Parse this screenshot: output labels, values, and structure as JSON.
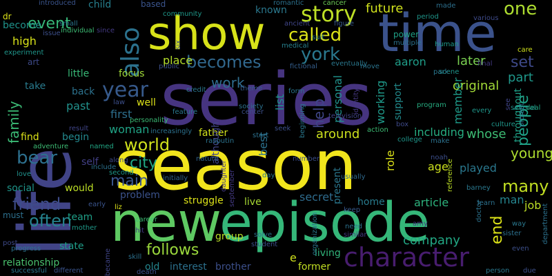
{
  "words": [
    {
      "text": "series",
      "color": "#463480"
    },
    {
      "text": "season",
      "color": "#f1e51d"
    },
    {
      "text": "life",
      "color": "#414487"
    },
    {
      "text": "new",
      "color": "#5ec962"
    },
    {
      "text": "episode",
      "color": "#35b779"
    },
    {
      "text": "show",
      "color": "#d8e219"
    },
    {
      "text": "time",
      "color": "#3b528b"
    },
    {
      "text": "character",
      "color": "#481d6f"
    },
    {
      "text": "also",
      "color": "#2c728e"
    },
    {
      "text": "story",
      "color": "#bddf26"
    },
    {
      "text": "called",
      "color": "#dde318"
    },
    {
      "text": "york",
      "color": "#2a788e"
    },
    {
      "text": "becomes",
      "color": "#31688e"
    },
    {
      "text": "year",
      "color": "#375a8c"
    },
    {
      "text": "one",
      "color": "#addc30"
    },
    {
      "text": "world",
      "color": "#d0e11c"
    },
    {
      "text": "bear",
      "color": "#2d708e"
    },
    {
      "text": "friend",
      "color": "#3e4c8a"
    },
    {
      "text": "city",
      "color": "#22a884"
    },
    {
      "text": "main",
      "color": "#39568c"
    },
    {
      "text": "follows",
      "color": "#9bd93c"
    },
    {
      "text": "many",
      "color": "#c2df23"
    },
    {
      "text": "often",
      "color": "#25838e"
    },
    {
      "text": "people",
      "color": "#1fa187"
    },
    {
      "text": "young",
      "color": "#addc30"
    },
    {
      "text": "end",
      "color": "#dde318"
    },
    {
      "text": "family",
      "color": "#3bbb75"
    },
    {
      "text": "event",
      "color": "#37b878"
    },
    {
      "text": "work",
      "color": "#2f6c8e"
    },
    {
      "text": "future",
      "color": "#d0e11c"
    },
    {
      "text": "original",
      "color": "#a2da37"
    },
    {
      "text": "set",
      "color": "#3e4989"
    },
    {
      "text": "part",
      "color": "#1f988b"
    },
    {
      "text": "later",
      "color": "#7ad151"
    },
    {
      "text": "aaron",
      "color": "#1f9e89"
    },
    {
      "text": "help",
      "color": "#404688"
    },
    {
      "text": "personal",
      "color": "#20928c"
    },
    {
      "text": "working",
      "color": "#1f9a8a"
    },
    {
      "text": "support",
      "color": "#228b8d"
    },
    {
      "text": "member",
      "color": "#1e9b8a"
    },
    {
      "text": "including",
      "color": "#26ad81"
    },
    {
      "text": "whose",
      "color": "#3dbc74"
    },
    {
      "text": "throughout",
      "color": "#1fa187"
    },
    {
      "text": "around",
      "color": "#ccE11d"
    },
    {
      "text": "list",
      "color": "#20928c"
    },
    {
      "text": "best",
      "color": "#2c728e"
    },
    {
      "text": "role",
      "color": "#dde318"
    },
    {
      "text": "age",
      "color": "#cde11d"
    },
    {
      "text": "played",
      "color": "#2a788e"
    },
    {
      "text": "job",
      "color": "#bddf26"
    },
    {
      "text": "man",
      "color": "#25848e"
    },
    {
      "text": "company",
      "color": "#22a884"
    },
    {
      "text": "article",
      "color": "#2db27d"
    },
    {
      "text": "home",
      "color": "#287c8e"
    },
    {
      "text": "secret",
      "color": "#2f6c8e"
    },
    {
      "text": "live",
      "color": "#a8db34"
    },
    {
      "text": "group",
      "color": "#bade28"
    },
    {
      "text": "brother",
      "color": "#3c4f8a"
    },
    {
      "text": "living",
      "color": "#31b57b"
    },
    {
      "text": "former",
      "color": "#c2df23"
    },
    {
      "text": "present",
      "color": "#2a778e"
    },
    {
      "text": "struggle",
      "color": "#dde318"
    },
    {
      "text": "problem",
      "color": "#3b528b"
    },
    {
      "text": "woman",
      "color": "#20a486"
    },
    {
      "text": "first",
      "color": "#2e6f8e"
    },
    {
      "text": "focus",
      "color": "#a0da39"
    },
    {
      "text": "well",
      "color": "#dde318"
    },
    {
      "text": "place",
      "color": "#b5de2b"
    },
    {
      "text": "back",
      "color": "#2c728e"
    },
    {
      "text": "past",
      "color": "#21918c"
    },
    {
      "text": "little",
      "color": "#38b977"
    },
    {
      "text": "take",
      "color": "#297b8e"
    },
    {
      "text": "art",
      "color": "#3e4a89"
    },
    {
      "text": "high",
      "color": "#d8e219"
    },
    {
      "text": "become",
      "color": "#1f948c"
    },
    {
      "text": "find",
      "color": "#dde318"
    },
    {
      "text": "begin",
      "color": "#23898e"
    },
    {
      "text": "self",
      "color": "#424086"
    },
    {
      "text": "team",
      "color": "#1fa088"
    },
    {
      "text": "would",
      "color": "#bddf26"
    },
    {
      "text": "social",
      "color": "#1f968b"
    },
    {
      "text": "must",
      "color": "#2d708e"
    },
    {
      "text": "relationship",
      "color": "#4ac16d"
    },
    {
      "text": "state",
      "color": "#1f9e89"
    },
    {
      "text": "father",
      "color": "#d2e21b"
    },
    {
      "text": "although",
      "color": "#414487"
    },
    {
      "text": "interest",
      "color": "#2c718e"
    },
    {
      "text": "old",
      "color": "#24868e"
    },
    {
      "text": "child",
      "color": "#277f8e"
    },
    {
      "text": "based",
      "color": "#3a548c"
    },
    {
      "text": "known",
      "color": "#2a788e"
    },
    {
      "text": "dr",
      "color": "#dde318"
    },
    {
      "text": "adventure",
      "color": "#3dbc74"
    },
    {
      "text": "named",
      "color": "#22a785"
    },
    {
      "text": "feature",
      "color": "#2a788e"
    },
    {
      "text": "nature",
      "color": "#32648e"
    },
    {
      "text": "day",
      "color": "#2a768e"
    },
    {
      "text": "usually",
      "color": "#306a8e"
    },
    {
      "text": "keep",
      "color": "#375b8d"
    },
    {
      "text": "similar",
      "color": "#453882"
    },
    {
      "text": "solve",
      "color": "#2c718e"
    },
    {
      "text": "career",
      "color": "#3dbc74"
    },
    {
      "text": "mother",
      "color": "#1f9a8a"
    },
    {
      "text": "doctor",
      "color": "#2c728e"
    },
    {
      "text": "program",
      "color": "#27ad81"
    },
    {
      "text": "several",
      "color": "#21918c"
    },
    {
      "text": "scene",
      "color": "#1f968b"
    },
    {
      "text": "fictional",
      "color": "#355f8d"
    },
    {
      "text": "form",
      "color": "#2b758e"
    },
    {
      "text": "eventually",
      "color": "#2a788e"
    },
    {
      "text": "society",
      "color": "#2c718e"
    },
    {
      "text": "move",
      "color": "#2b748e"
    },
    {
      "text": "rasputin",
      "color": "#2c738e"
    },
    {
      "text": "reference",
      "color": "#bddf26"
    },
    {
      "text": "culture",
      "color": "#1f978b"
    },
    {
      "text": "college",
      "color": "#1f968b"
    },
    {
      "text": "noah",
      "color": "#3c4f8a"
    },
    {
      "text": "cancer",
      "color": "#6ece58"
    },
    {
      "text": "power",
      "color": "#1fa187"
    },
    {
      "text": "multiple",
      "color": "#2c728e"
    },
    {
      "text": "introduced",
      "color": "#3a548c"
    },
    {
      "text": "community",
      "color": "#1f998a"
    },
    {
      "text": "romantic",
      "color": "#2c718e"
    },
    {
      "text": "figure",
      "color": "#38598c"
    },
    {
      "text": "ancient",
      "color": "#404588"
    },
    {
      "text": "medical",
      "color": "#27808e"
    },
    {
      "text": "period",
      "color": "#1f968b"
    },
    {
      "text": "made",
      "color": "#2d708e"
    },
    {
      "text": "various",
      "color": "#3e4a89"
    },
    {
      "text": "human",
      "color": "#1f9a8a"
    },
    {
      "text": "care",
      "color": "#d0e11c"
    },
    {
      "text": "deal",
      "color": "#22a785"
    },
    {
      "text": "park",
      "color": "#2a768e"
    },
    {
      "text": "box",
      "color": "#3e4a89"
    },
    {
      "text": "action",
      "color": "#3dbc74"
    },
    {
      "text": "make",
      "color": "#2c728e"
    },
    {
      "text": "television",
      "color": "#414487"
    },
    {
      "text": "identity",
      "color": "#453882"
    },
    {
      "text": "beginning",
      "color": "#2a788e"
    },
    {
      "text": "theme",
      "color": "#375b8d"
    },
    {
      "text": "center",
      "color": "#3c4f8a"
    },
    {
      "text": "credit",
      "color": "#2a788e"
    },
    {
      "text": "personality",
      "color": "#3bbb75"
    },
    {
      "text": "increasingly",
      "color": "#2c718e"
    },
    {
      "text": "initially",
      "color": "#32648e"
    },
    {
      "text": "along",
      "color": "#3e4a89"
    },
    {
      "text": "second",
      "color": "#1f9a8a"
    },
    {
      "text": "include",
      "color": "#2c718e"
    },
    {
      "text": "early",
      "color": "#3a548c"
    },
    {
      "text": "liz",
      "color": "#dde318"
    },
    {
      "text": "love",
      "color": "#21918c"
    },
    {
      "text": "result",
      "color": "#404588"
    },
    {
      "text": "experiment",
      "color": "#1f968b"
    },
    {
      "text": "issue",
      "color": "#3c4f8a"
    },
    {
      "text": "small",
      "color": "#2a768e"
    },
    {
      "text": "individual",
      "color": "#3dbc74"
    },
    {
      "text": "since",
      "color": "#443a83"
    },
    {
      "text": "progress",
      "color": "#2c718e"
    },
    {
      "text": "post",
      "color": "#3e4a89"
    },
    {
      "text": "successful",
      "color": "#2a788e"
    },
    {
      "text": "different",
      "color": "#3a548c"
    },
    {
      "text": "became",
      "color": "#404588"
    },
    {
      "text": "skill",
      "color": "#2c718e"
    },
    {
      "text": "death",
      "color": "#3c4f8a"
    },
    {
      "text": "need",
      "color": "#2c728e"
    },
    {
      "text": "organization",
      "color": "#2a788e"
    },
    {
      "text": "amy",
      "color": "#443a83"
    },
    {
      "text": "learn",
      "color": "#2c718e"
    },
    {
      "text": "barney",
      "color": "#2a788e"
    },
    {
      "text": "sister",
      "color": "#2c718e"
    },
    {
      "text": "way",
      "color": "#2a788e"
    },
    {
      "text": "even",
      "color": "#3c4f8a"
    },
    {
      "text": "due",
      "color": "#3c4f8a"
    },
    {
      "text": "person",
      "color": "#2a788e"
    },
    {
      "text": "department",
      "color": "#2c718e"
    },
    {
      "text": "every",
      "color": "#1f968b"
    },
    {
      "text": "project",
      "color": "#2c718e"
    },
    {
      "text": "see",
      "color": "#404588"
    },
    {
      "text": "law",
      "color": "#3c4f8a"
    },
    {
      "text": "start",
      "color": "#2c718e"
    },
    {
      "text": "seek",
      "color": "#3c4f8a"
    },
    {
      "text": "number",
      "color": "#3c4f8a"
    },
    {
      "text": "daughter",
      "color": "#443a83"
    },
    {
      "text": "suit",
      "color": "#2a788e"
    },
    {
      "text": "final",
      "color": "#443a83"
    },
    {
      "text": "six",
      "color": "#3c4f8a"
    },
    {
      "text": "public",
      "color": "#3c4f8a"
    },
    {
      "text": "e",
      "color": "#d0e11c"
    },
    {
      "text": "september",
      "color": "#443a83"
    },
    {
      "text": "student",
      "color": "#3c4f8a"
    },
    {
      "text": "hit",
      "color": "#443a83"
    }
  ]
}
